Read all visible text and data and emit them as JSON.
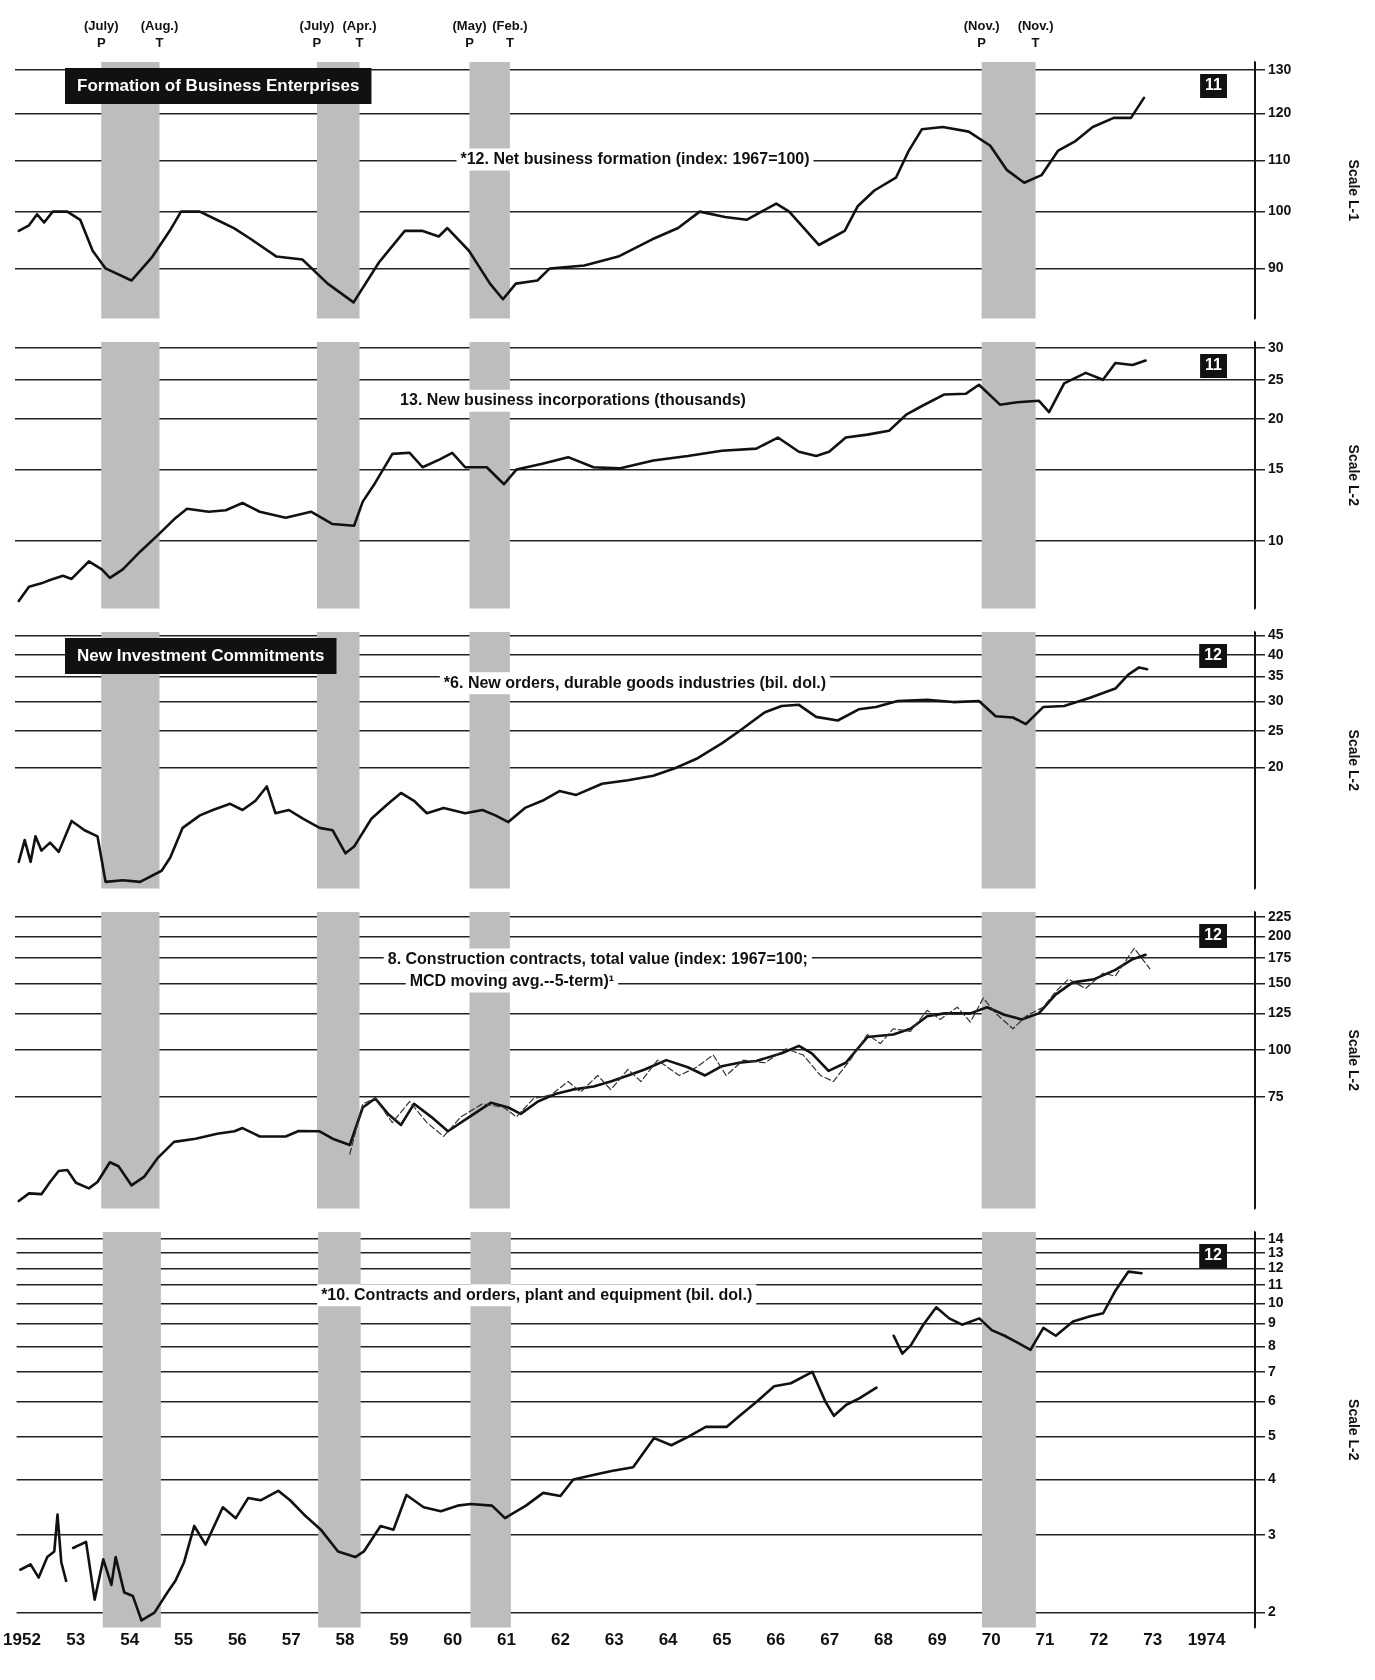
{
  "chart_data": [
    {
      "type": "line",
      "title": "Formation of Business Enterprises",
      "subtitle": "*12. Net business formation (index: 1967=100)",
      "ylabel": "Scale L-1",
      "log": "y",
      "grid": "y",
      "tick_labels": "y",
      "xlim": [
        1951.9,
        1974.9
      ],
      "ylim": [
        82,
        132
      ],
      "yticks": [
        90,
        100,
        110,
        120,
        130
      ],
      "bands": [
        {
          "axis": "x",
          "from": 1953.5,
          "to": 1954.58,
          "color": "#bdbdbd"
        },
        {
          "axis": "x",
          "from": 1957.5,
          "to": 1958.29,
          "color": "#bdbdbd"
        },
        {
          "axis": "x",
          "from": 1960.33,
          "to": 1961.08,
          "color": "#bdbdbd"
        },
        {
          "axis": "x",
          "from": 1969.83,
          "to": 1970.83,
          "color": "#bdbdbd"
        }
      ],
      "annotations": [
        "(July)\nP",
        "(Aug.)\nT",
        "(July)\nP",
        "(Apr.)\nT",
        "(May)\nP",
        "(Feb.)\nT",
        "(Nov.)\nP",
        "(Nov.)\nT",
        "11"
      ],
      "series": [
        {
          "color": "#111111",
          "x": [
            1951.97,
            1952.16,
            1952.31,
            1952.44,
            1952.6,
            1952.87,
            1953.11,
            1953.34,
            1953.58,
            1954.06,
            1954.45,
            1954.77,
            1954.98,
            1955.33,
            1955.64,
            1955.96,
            1956.28,
            1956.75,
            1957.23,
            1957.7,
            1958.18,
            1958.65,
            1959.13,
            1959.45,
            1959.76,
            1959.92,
            1960.32,
            1960.71,
            1960.95,
            1961.19,
            1961.59,
            1961.82,
            1962.46,
            1963.09,
            1963.72,
            1964.2,
            1964.6,
            1965.07,
            1965.47,
            1966.02,
            1966.26,
            1966.81,
            1967.29,
            1967.53,
            1967.84,
            1968.24,
            1968.48,
            1968.72,
            1969.11,
            1969.59,
            1969.99,
            1970.3,
            1970.62,
            1970.94,
            1971.25,
            1971.57,
            1971.89,
            1972.28,
            1972.6,
            1972.84
          ],
          "values": [
            96.5,
            97.5,
            99.5,
            98,
            100,
            100,
            98.5,
            93,
            90,
            88,
            92,
            96.5,
            100,
            100,
            98.5,
            97,
            95,
            92,
            91.5,
            87.5,
            84.5,
            91,
            96.5,
            96.5,
            95.5,
            97,
            93,
            87.5,
            85,
            87.5,
            88,
            90,
            90.5,
            92,
            95,
            97,
            100,
            99,
            98.5,
            101.5,
            100,
            94,
            96.5,
            101,
            104,
            106.5,
            112,
            116.5,
            117,
            116,
            113,
            108,
            105.5,
            107,
            112,
            114,
            117,
            119,
            119,
            123.5
          ]
        }
      ]
    },
    {
      "type": "line",
      "subtitle": "13. New business incorporations (thousands)",
      "ylabel": "Scale L-2",
      "log": "y",
      "grid": "y",
      "tick_labels": "y",
      "xlim": [
        1951.9,
        1974.9
      ],
      "ylim": [
        6.8,
        31
      ],
      "yticks": [
        10,
        15,
        20,
        25,
        30
      ],
      "bands": [
        {
          "axis": "x",
          "from": 1953.5,
          "to": 1954.58,
          "color": "#bdbdbd"
        },
        {
          "axis": "x",
          "from": 1957.5,
          "to": 1958.29,
          "color": "#bdbdbd"
        },
        {
          "axis": "x",
          "from": 1960.33,
          "to": 1961.08,
          "color": "#bdbdbd"
        },
        {
          "axis": "x",
          "from": 1969.83,
          "to": 1970.83,
          "color": "#bdbdbd"
        }
      ],
      "annotations": [
        "11"
      ],
      "series": [
        {
          "color": "#111111",
          "x": [
            1951.97,
            1952.16,
            1952.39,
            1952.55,
            1952.79,
            1952.95,
            1953.27,
            1953.51,
            1953.66,
            1953.9,
            1954.22,
            1954.54,
            1954.85,
            1955.09,
            1955.49,
            1955.81,
            1956.12,
            1956.44,
            1956.92,
            1957.39,
            1957.79,
            1958.19,
            1958.35,
            1958.58,
            1958.9,
            1959.22,
            1959.46,
            1959.78,
            1960.01,
            1960.25,
            1960.65,
            1960.97,
            1961.2,
            1961.68,
            1962.16,
            1962.63,
            1963.11,
            1963.74,
            1964.38,
            1965.01,
            1965.65,
            1966.05,
            1966.44,
            1966.76,
            1967.0,
            1967.31,
            1967.71,
            1968.11,
            1968.43,
            1968.74,
            1969.14,
            1969.54,
            1969.78,
            1970.17,
            1970.49,
            1970.89,
            1971.08,
            1971.36,
            1971.76,
            1972.08,
            1972.31,
            1972.63,
            1972.87
          ],
          "values": [
            7.1,
            7.7,
            7.85,
            8.0,
            8.2,
            8.05,
            8.9,
            8.5,
            8.1,
            8.5,
            9.4,
            10.3,
            11.3,
            12.0,
            11.8,
            11.9,
            12.4,
            11.8,
            11.4,
            11.8,
            11.0,
            10.9,
            12.5,
            13.9,
            16.4,
            16.5,
            15.2,
            15.9,
            16.5,
            15.2,
            15.2,
            13.8,
            15.0,
            15.5,
            16.1,
            15.2,
            15.1,
            15.8,
            16.2,
            16.7,
            16.9,
            18.0,
            16.6,
            16.2,
            16.6,
            18.0,
            18.3,
            18.7,
            20.5,
            21.6,
            23.0,
            23.1,
            24.3,
            21.7,
            22.0,
            22.2,
            20.8,
            24.5,
            26,
            25,
            27.5,
            27.2,
            27.9
          ]
        }
      ]
    },
    {
      "type": "line",
      "title": "New Investment Commitments",
      "subtitle": "*6. New orders, durable goods industries (bil. dol.)",
      "ylabel": "Scale L-2",
      "log": "y",
      "grid": "y",
      "tick_labels": "y",
      "xlim": [
        1951.9,
        1974.9
      ],
      "ylim": [
        9.5,
        46
      ],
      "yticks": [
        20,
        25,
        30,
        35,
        40,
        45
      ],
      "bands": [
        {
          "axis": "x",
          "from": 1953.5,
          "to": 1954.58,
          "color": "#bdbdbd"
        },
        {
          "axis": "x",
          "from": 1957.5,
          "to": 1958.29,
          "color": "#bdbdbd"
        },
        {
          "axis": "x",
          "from": 1960.33,
          "to": 1961.08,
          "color": "#bdbdbd"
        },
        {
          "axis": "x",
          "from": 1969.83,
          "to": 1970.83,
          "color": "#bdbdbd"
        }
      ],
      "annotations": [
        "12"
      ],
      "series": [
        {
          "color": "#111111",
          "x": [
            1951.97,
            1952.08,
            1952.19,
            1952.28,
            1952.39,
            1952.55,
            1952.71,
            1952.95,
            1953.19,
            1953.43,
            1953.58,
            1953.9,
            1954.22,
            1954.62,
            1954.78,
            1955.01,
            1955.33,
            1955.57,
            1955.89,
            1956.12,
            1956.36,
            1956.57,
            1956.73,
            1956.98,
            1957.24,
            1957.55,
            1957.79,
            1958.03,
            1958.19,
            1958.51,
            1958.82,
            1959.06,
            1959.3,
            1959.54,
            1959.85,
            1960.25,
            1960.57,
            1960.81,
            1961.05,
            1961.36,
            1961.68,
            1962.0,
            1962.31,
            1962.79,
            1963.27,
            1963.74,
            1964.14,
            1964.54,
            1965.01,
            1965.33,
            1965.81,
            1966.12,
            1966.44,
            1966.76,
            1967.16,
            1967.55,
            1967.87,
            1968.27,
            1968.82,
            1969.3,
            1969.78,
            1970.09,
            1970.41,
            1970.65,
            1970.97,
            1971.36,
            1971.84,
            1972.31,
            1972.55,
            1972.75,
            1972.9
          ],
          "values": [
            11.2,
            12.8,
            11.2,
            13.1,
            12.0,
            12.6,
            11.9,
            14.4,
            13.6,
            13.1,
            9.9,
            10.0,
            9.9,
            10.6,
            11.5,
            13.8,
            14.9,
            15.4,
            16.0,
            15.4,
            16.3,
            17.8,
            15.1,
            15.4,
            14.6,
            13.8,
            13.6,
            11.8,
            12.3,
            14.6,
            16.0,
            17.1,
            16.3,
            15.1,
            15.6,
            15.1,
            15.4,
            14.9,
            14.3,
            15.6,
            16.3,
            17.3,
            16.9,
            18.1,
            18.5,
            19.0,
            19.9,
            21.1,
            23.2,
            25,
            28.1,
            29.2,
            29.4,
            27.3,
            26.7,
            28.6,
            29.0,
            30.1,
            30.3,
            29.9,
            30.1,
            27.4,
            27.2,
            26.1,
            29.0,
            29.2,
            30.7,
            32.5,
            35.4,
            37.0,
            36.6
          ]
        }
      ]
    },
    {
      "type": "line",
      "subtitle": "8. Construction contracts, total value (index: 1967=100;\nMCD moving avg.--5-term)¹",
      "ylabel": "Scale L-2",
      "log": "y",
      "grid": "y",
      "tick_labels": "y",
      "xlim": [
        1951.9,
        1974.9
      ],
      "ylim": [
        38,
        232
      ],
      "yticks": [
        75,
        100,
        125,
        150,
        175,
        200,
        225
      ],
      "bands": [
        {
          "axis": "x",
          "from": 1953.5,
          "to": 1954.58,
          "color": "#bdbdbd"
        },
        {
          "axis": "x",
          "from": 1957.5,
          "to": 1958.29,
          "color": "#bdbdbd"
        },
        {
          "axis": "x",
          "from": 1960.33,
          "to": 1961.08,
          "color": "#bdbdbd"
        },
        {
          "axis": "x",
          "from": 1969.83,
          "to": 1970.83,
          "color": "#bdbdbd"
        }
      ],
      "annotations": [
        "12"
      ],
      "series": [
        {
          "color": "#333333",
          "line_style": "dashed",
          "x": [
            1958.11,
            1958.35,
            1958.58,
            1958.9,
            1959.22,
            1959.54,
            1959.85,
            1960.17,
            1960.57,
            1960.97,
            1961.2,
            1961.52,
            1961.84,
            1962.16,
            1962.39,
            1962.71,
            1962.95,
            1963.27,
            1963.51,
            1963.82,
            1964.22,
            1964.54,
            1964.85,
            1965.09,
            1965.41,
            1965.81,
            1966.2,
            1966.52,
            1966.84,
            1967.08,
            1967.39,
            1967.71,
            1967.95,
            1968.19,
            1968.51,
            1968.82,
            1969.06,
            1969.38,
            1969.62,
            1969.86,
            1970.09,
            1970.41,
            1970.65,
            1970.97,
            1971.2,
            1971.44,
            1971.76,
            1972.08,
            1972.31,
            1972.66,
            1972.95
          ],
          "values": [
            53,
            72,
            74.4,
            64.2,
            73,
            64.2,
            59,
            66.5,
            72,
            70.4,
            66.5,
            74.4,
            76,
            82.5,
            77.4,
            85.6,
            78.5,
            88.8,
            82.5,
            94,
            85.6,
            90,
            97,
            85.6,
            94,
            92.5,
            100.7,
            97,
            85.6,
            82.5,
            94,
            109.9,
            104,
            113.8,
            112,
            127.4,
            120.5,
            129.8,
            118.6,
            137.2,
            125,
            113.8,
            122.8,
            129.8,
            142.6,
            154,
            145.5,
            159.7,
            157,
            186,
            164
          ]
        },
        {
          "color": "#111111",
          "x": [
            1951.97,
            1952.16,
            1952.39,
            1952.55,
            1952.71,
            1952.87,
            1953.03,
            1953.27,
            1953.43,
            1953.66,
            1953.82,
            1954.06,
            1954.3,
            1954.54,
            1954.85,
            1955.25,
            1955.65,
            1955.97,
            1956.12,
            1956.44,
            1956.92,
            1957.16,
            1957.55,
            1957.79,
            1958.11,
            1958.35,
            1958.58,
            1958.82,
            1959.06,
            1959.3,
            1959.62,
            1959.93,
            1960.33,
            1960.73,
            1961.05,
            1961.28,
            1961.6,
            1961.92,
            1962.24,
            1962.63,
            1962.95,
            1963.27,
            1963.58,
            1963.98,
            1964.38,
            1964.7,
            1965.01,
            1965.33,
            1965.65,
            1966.12,
            1966.44,
            1966.68,
            1966.99,
            1967.31,
            1967.71,
            1968.19,
            1968.51,
            1968.82,
            1969.14,
            1969.62,
            1969.93,
            1970.25,
            1970.57,
            1970.89,
            1971.2,
            1971.52,
            1971.92,
            1972.31,
            1972.63,
            1972.87
          ],
          "values": [
            39.8,
            41.7,
            41.5,
            44.7,
            47.8,
            48.1,
            44.5,
            43.0,
            44.7,
            50.4,
            49.2,
            43.8,
            46.2,
            51.6,
            57.1,
            58.2,
            60.0,
            60.9,
            62.1,
            59.0,
            59.0,
            61.0,
            60.9,
            58.2,
            56.0,
            70.4,
            74.4,
            67.7,
            63.3,
            72.0,
            66.5,
            60.9,
            66.5,
            72.5,
            70.4,
            67.7,
            73.0,
            76.4,
            78.5,
            80,
            82.5,
            85.6,
            88.8,
            94,
            90,
            85.6,
            90.6,
            92.5,
            93.5,
            98,
            102.5,
            98,
            88,
            92.5,
            108.2,
            109.9,
            113.8,
            122.8,
            125,
            125,
            129.8,
            124,
            120.5,
            125,
            140.2,
            151,
            154,
            163,
            174,
            178.7
          ]
        }
      ]
    },
    {
      "type": "line",
      "subtitle": "*10. Contracts and orders, plant and equipment (bil. dol.)",
      "ylabel": "Scale L-2",
      "log": "y",
      "grid": "y",
      "xlim": [
        1951.9,
        1974.9
      ],
      "ylim": [
        1.85,
        14.5
      ],
      "yticks": [
        2,
        3,
        4,
        5,
        6,
        7,
        8,
        9,
        10,
        11,
        12,
        13,
        14
      ],
      "xticks": [
        1952,
        {
          "value": 1953,
          "label": "53"
        },
        {
          "value": 1954,
          "label": "54"
        },
        {
          "value": 1955,
          "label": "55"
        },
        {
          "value": 1956,
          "label": "56"
        },
        {
          "value": 1957,
          "label": "57"
        },
        {
          "value": 1958,
          "label": "58"
        },
        {
          "value": 1959,
          "label": "59"
        },
        {
          "value": 1960,
          "label": "60"
        },
        {
          "value": 1961,
          "label": "61"
        },
        {
          "value": 1962,
          "label": "62"
        },
        {
          "value": 1963,
          "label": "63"
        },
        {
          "value": 1964,
          "label": "64"
        },
        {
          "value": 1965,
          "label": "65"
        },
        {
          "value": 1966,
          "label": "66"
        },
        {
          "value": 1967,
          "label": "67"
        },
        {
          "value": 1968,
          "label": "68"
        },
        {
          "value": 1969,
          "label": "69"
        },
        {
          "value": 1970,
          "label": "70"
        },
        {
          "value": 1971,
          "label": "71"
        },
        {
          "value": 1972,
          "label": "72"
        },
        {
          "value": 1973,
          "label": "73"
        },
        1974
      ],
      "bands": [
        {
          "axis": "x",
          "from": 1953.5,
          "to": 1954.58,
          "color": "#bdbdbd"
        },
        {
          "axis": "x",
          "from": 1957.5,
          "to": 1958.29,
          "color": "#bdbdbd"
        },
        {
          "axis": "x",
          "from": 1960.33,
          "to": 1961.08,
          "color": "#bdbdbd"
        },
        {
          "axis": "x",
          "from": 1969.83,
          "to": 1970.83,
          "color": "#bdbdbd"
        }
      ],
      "annotations": [
        "12"
      ],
      "series": [
        {
          "color": "#111111",
          "x": [
            1951.97,
            1952.16,
            1952.31,
            1952.47,
            1952.6,
            1952.66,
            1952.73,
            1952.82,
            1952.89,
            1952.95,
            1953.19,
            1953.35,
            1953.51,
            1953.66,
            1953.74,
            1953.9,
            1954.06,
            1954.22,
            1954.46,
            1954.7,
            1954.85,
            1955.01,
            1955.2,
            1955.41,
            1955.73,
            1955.97,
            1956.2,
            1956.44,
            1956.76,
            1956.98,
            1957.24,
            1957.55,
            1957.87,
            1958.19,
            1958.35,
            1958.66,
            1958.9,
            1959.14,
            1959.46,
            1959.78,
            1960.09,
            1960.33,
            1960.73,
            1960.97,
            1961.36,
            1961.68,
            1962.0,
            1962.24,
            1962.63,
            1962.95,
            1963.35,
            1963.74,
            1964.06,
            1964.38,
            1964.7,
            1965.09,
            1965.33,
            1965.65,
            1965.97,
            1966.28,
            1966.68,
            1966.92,
            1967.08,
            1967.31,
            1967.55,
            1967.87,
            1968.0,
            1968.19,
            1968.35,
            1968.51,
            1968.74,
            1968.98,
            1969.22,
            1969.46,
            1969.78,
            1970.01,
            1970.25,
            1970.49,
            1970.73,
            1970.97,
            1971.2,
            1971.52,
            1971.84,
            1972.08,
            1972.31,
            1972.55,
            1972.79
          ],
          "values": [
            2.5,
            2.57,
            2.4,
            2.67,
            2.75,
            3.33,
            2.6,
            2.36,
            null,
            2.8,
            2.89,
            2.14,
            2.64,
            2.31,
            2.67,
            2.22,
            2.18,
            1.92,
            2.0,
            2.22,
            2.36,
            2.6,
            3.14,
            2.85,
            3.46,
            3.27,
            3.63,
            3.59,
            3.77,
            3.59,
            3.33,
            3.08,
            2.75,
            2.67,
            2.75,
            3.14,
            3.08,
            3.69,
            3.46,
            3.39,
            3.49,
            3.52,
            3.49,
            3.27,
            3.49,
            3.73,
            3.67,
            4.0,
            4.1,
            4.18,
            4.26,
            4.96,
            4.78,
            5.0,
            5.26,
            5.26,
            5.57,
            6.0,
            6.5,
            6.6,
            7.0,
            6.0,
            5.57,
            5.9,
            6.1,
            6.45,
            null,
            8.45,
            7.7,
            8.05,
            8.95,
            9.8,
            9.25,
            8.95,
            9.25,
            8.7,
            8.45,
            8.15,
            7.85,
            8.8,
            8.45,
            9.1,
            9.35,
            9.5,
            10.7,
            11.8,
            11.7
          ]
        }
      ]
    }
  ]
}
